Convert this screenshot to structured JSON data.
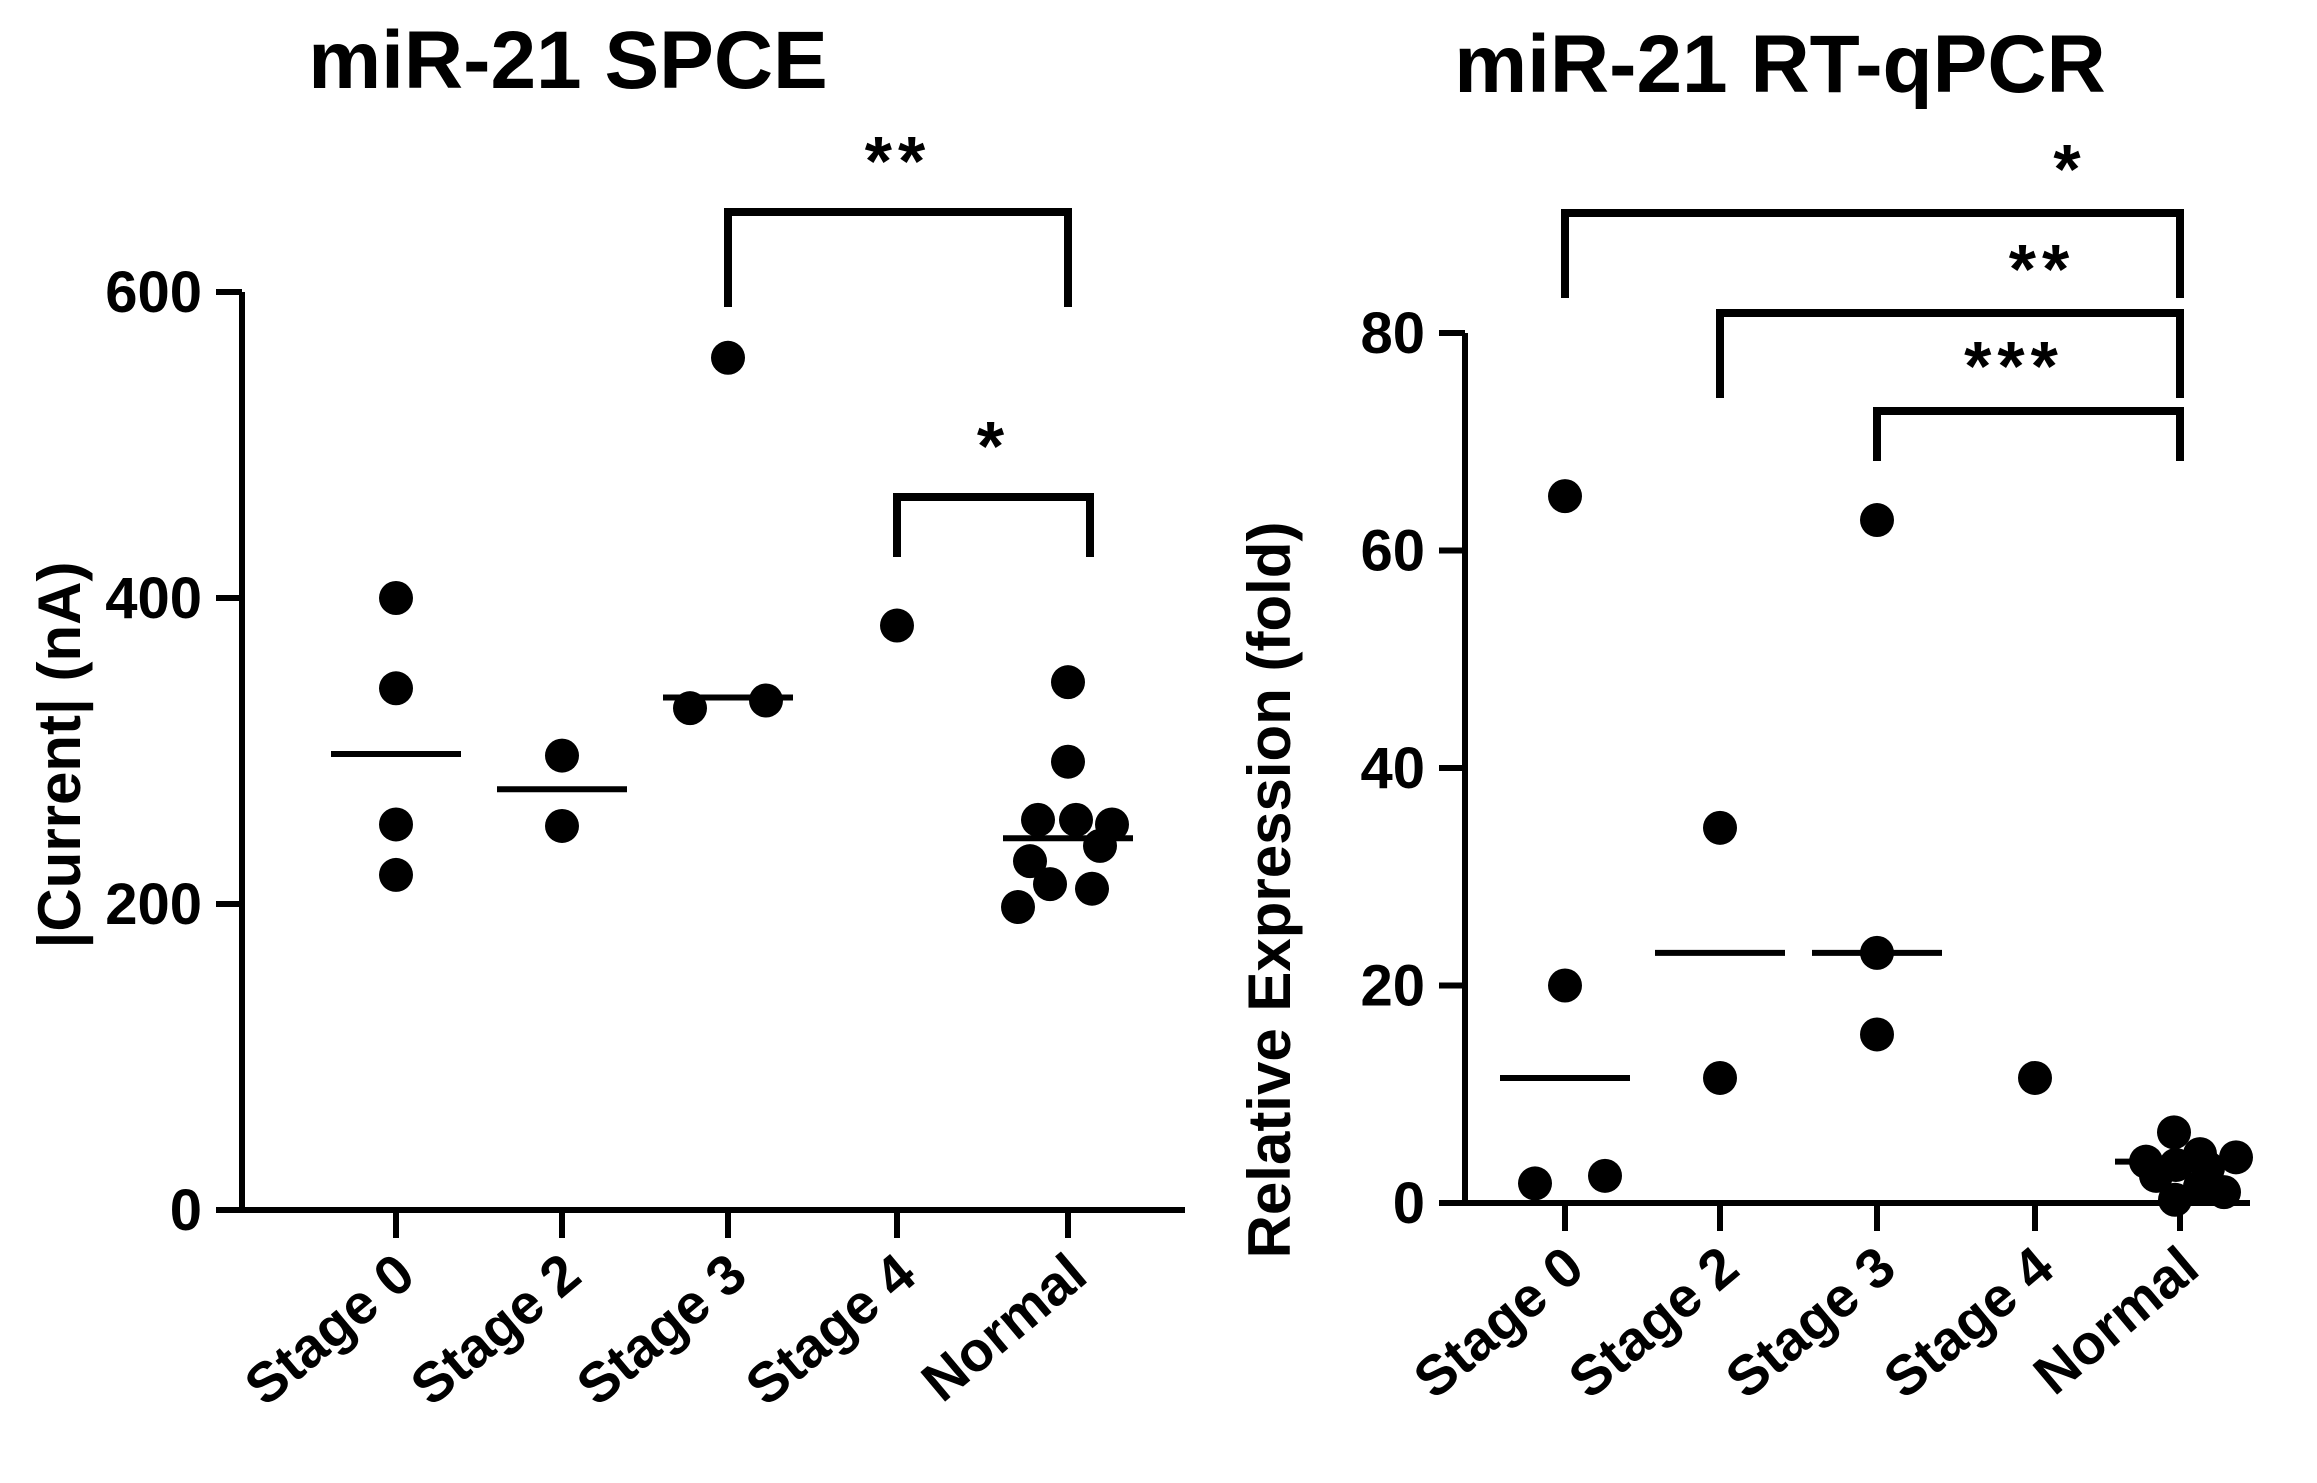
{
  "chart_data": [
    {
      "type": "scatter",
      "title": "miR-21 SPCE",
      "xlabel": "",
      "ylabel": "|Current| (nA)",
      "ylim": [
        0,
        600
      ],
      "yticks": [
        0,
        200,
        400,
        600
      ],
      "categories": [
        "Stage 0",
        "Stage 2",
        "Stage 3",
        "Stage 4",
        "Normal"
      ],
      "groups": [
        {
          "category": "Stage 0",
          "points": [
            400,
            341,
            252,
            219
          ],
          "mean": 298
        },
        {
          "category": "Stage 2",
          "points": [
            297,
            251
          ],
          "mean": 275
        },
        {
          "category": "Stage 3",
          "points": [
            557,
            328,
            333
          ],
          "mean": 335
        },
        {
          "category": "Stage 4",
          "points": [
            382
          ],
          "mean": null
        },
        {
          "category": "Normal",
          "points": [
            345,
            293,
            255,
            255,
            252,
            238,
            228,
            213,
            210,
            198
          ],
          "mean": 243
        }
      ],
      "significance": [
        {
          "label": "**",
          "from": "Stage 3",
          "to": "Normal"
        },
        {
          "label": "*",
          "from": "Stage 4",
          "to": "Normal"
        }
      ]
    },
    {
      "type": "scatter",
      "title": "miR-21 RT-qPCR",
      "xlabel": "",
      "ylabel": "Relative Expression (fold)",
      "ylim": [
        0,
        80
      ],
      "yticks": [
        0,
        20,
        40,
        60,
        80
      ],
      "categories": [
        "Stage 0",
        "Stage 2",
        "Stage 3",
        "Stage 4",
        "Normal"
      ],
      "groups": [
        {
          "category": "Stage 0",
          "points": [
            65,
            20,
            2.5,
            1.8
          ],
          "mean": 11.5
        },
        {
          "category": "Stage 2",
          "points": [
            34.5,
            11.5
          ],
          "mean": 23
        },
        {
          "category": "Stage 3",
          "points": [
            62.8,
            23,
            15.5
          ],
          "mean": 23
        },
        {
          "category": "Stage 4",
          "points": [
            11.5
          ],
          "mean": null
        },
        {
          "category": "Normal",
          "points": [
            6.5,
            4.5,
            4.2,
            3.8,
            3.5,
            3.2,
            2.5,
            1.5,
            1.0,
            0.3
          ],
          "mean": 3.8
        }
      ],
      "significance": [
        {
          "label": "*",
          "from": "Stage 0",
          "to": "Normal"
        },
        {
          "label": "**",
          "from": "Stage 2",
          "to": "Normal"
        },
        {
          "label": "***",
          "from": "Stage 3",
          "to": "Normal"
        }
      ]
    }
  ]
}
